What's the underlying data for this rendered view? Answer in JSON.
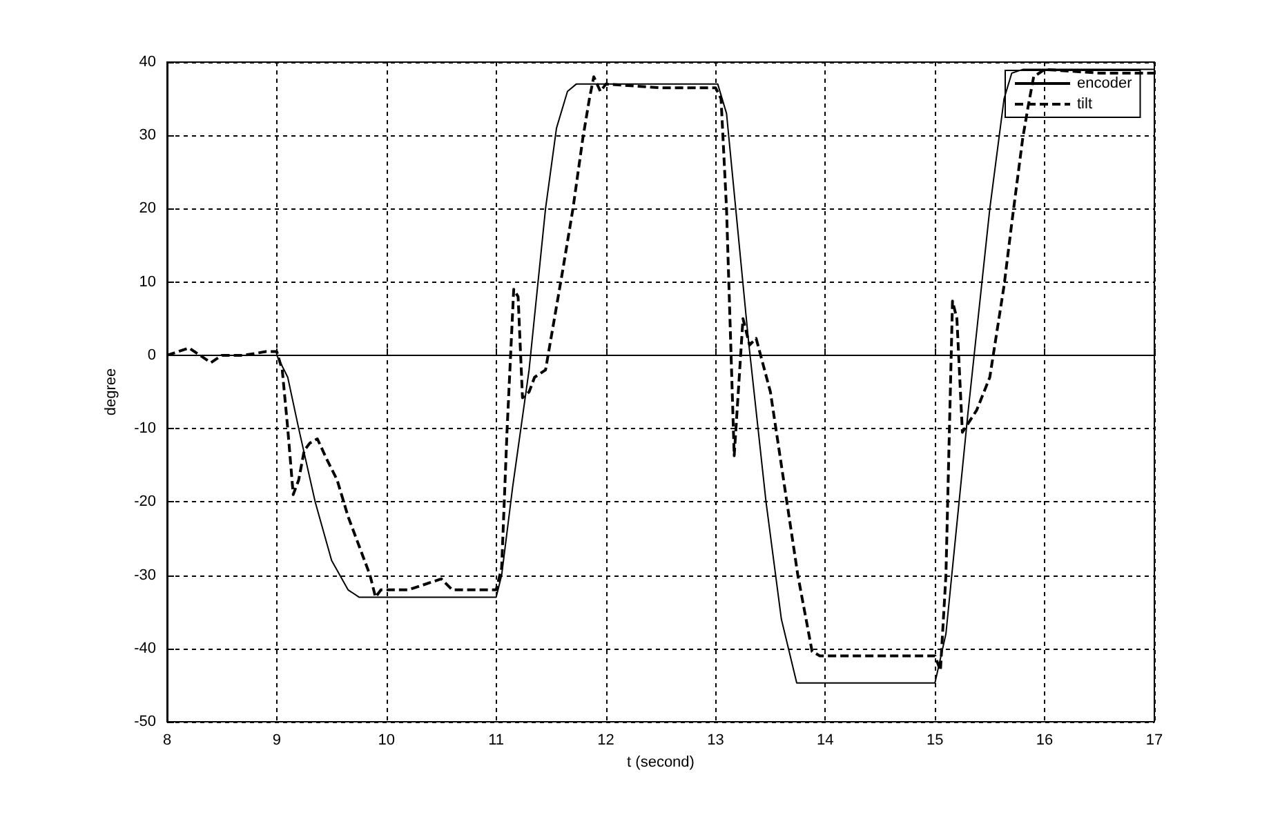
{
  "chart_data": {
    "type": "line",
    "xlabel": "t (second)",
    "ylabel": "degree",
    "xlim": [
      8,
      17
    ],
    "xticks": [
      8,
      9,
      10,
      11,
      12,
      13,
      14,
      15,
      16,
      17
    ],
    "ylim": [
      -50,
      40
    ],
    "yticks": [
      -50,
      -40,
      -30,
      -20,
      -10,
      0,
      10,
      20,
      30,
      40
    ],
    "grid": true,
    "legend": "top right",
    "marker": "none",
    "series": [
      {
        "name": "encoder",
        "color": "#000000",
        "line_style": "solid",
        "x": [
          8,
          9,
          9.1,
          9.2,
          9.35,
          9.5,
          9.65,
          9.75,
          9.8,
          11,
          11.05,
          11.15,
          11.3,
          11.45,
          11.55,
          11.65,
          11.73,
          13.02,
          13.1,
          13.3,
          13.46,
          13.6,
          13.74,
          13.85,
          15,
          15.1,
          15.3,
          15.5,
          15.63,
          15.7,
          15.8,
          17
        ],
        "values": [
          0,
          0,
          -3,
          -10,
          -20,
          -28,
          -32,
          -33,
          -33,
          -33,
          -30,
          -18,
          -2,
          20,
          31,
          36,
          37,
          37,
          33,
          2,
          -20,
          -36,
          -44.7,
          -44.7,
          -44.7,
          -38,
          -8,
          20,
          35,
          38.5,
          39,
          39
        ]
      },
      {
        "name": "tilt",
        "color": "#000000",
        "line_style": "dashed",
        "x": [
          8,
          8.1,
          8.2,
          8.3,
          8.4,
          8.5,
          8.7,
          8.9,
          9,
          9.05,
          9.1,
          9.15,
          9.2,
          9.25,
          9.3,
          9.37,
          9.45,
          9.55,
          9.65,
          9.75,
          9.85,
          9.9,
          9.95,
          10,
          10.2,
          10.4,
          10.5,
          10.6,
          10.8,
          11,
          11.05,
          11.1,
          11.16,
          11.2,
          11.24,
          11.3,
          11.35,
          11.45,
          11.6,
          11.7,
          11.79,
          11.85,
          11.89,
          11.95,
          12,
          12.5,
          13,
          13.05,
          13.1,
          13.17,
          13.25,
          13.31,
          13.37,
          13.5,
          13.65,
          13.75,
          13.88,
          13.95,
          14.5,
          15,
          15.05,
          15.1,
          15.16,
          15.2,
          15.25,
          15.38,
          15.5,
          15.63,
          15.7,
          15.8,
          15.85,
          15.9,
          16,
          16.5,
          17
        ],
        "values": [
          0,
          0.5,
          1,
          0,
          -1,
          0,
          0,
          0.5,
          0.5,
          -2,
          -10,
          -19,
          -17,
          -13,
          -12,
          -11.4,
          -14,
          -17,
          -22,
          -26,
          -30,
          -33,
          -32,
          -32,
          -32,
          -31,
          -30.5,
          -32,
          -32,
          -32,
          -29,
          -10,
          9,
          8,
          -5.8,
          -5,
          -3,
          -2,
          11,
          20,
          29.6,
          35,
          38,
          36,
          37,
          36.5,
          36.5,
          35,
          20,
          -13.7,
          5,
          1.4,
          2.3,
          -5,
          -20,
          -30,
          -40.4,
          -41,
          -41,
          -41,
          -43,
          -30,
          7.4,
          5,
          -10.5,
          -7.5,
          -3,
          9.5,
          18,
          29.6,
          34,
          38,
          39,
          38.5,
          38.5
        ]
      }
    ]
  }
}
